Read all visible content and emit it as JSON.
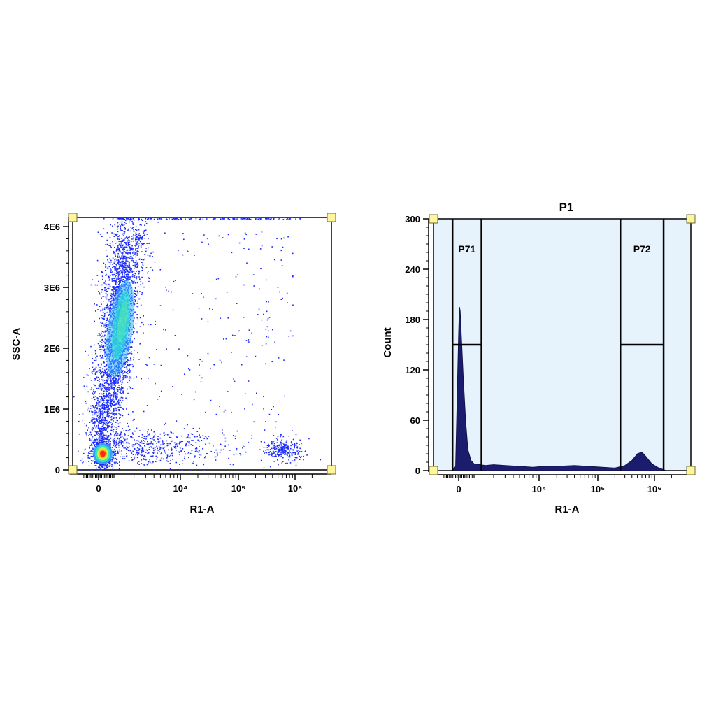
{
  "chart_data": [
    {
      "type": "scatter",
      "title": "",
      "xlabel": "R1-A",
      "ylabel": "SSC-A",
      "x_tick_labels": [
        "0",
        "10⁴",
        "10⁵",
        "10⁶"
      ],
      "y_tick_labels": [
        "0",
        "1E6",
        "2E6",
        "3E6",
        "4E6"
      ],
      "x_scale": "biexponential",
      "ylim": [
        0,
        4150000
      ],
      "density_coloring": true,
      "grid": false,
      "populations": [
        {
          "name": "",
          "x_center": 200,
          "y_center": 280000,
          "density": "highest"
        },
        {
          "name": "",
          "x_center": 1800,
          "y_center": 2400000,
          "density": "high"
        },
        {
          "name": "",
          "x_center": 700000,
          "y_center": 350000,
          "density": "low"
        }
      ]
    },
    {
      "type": "area",
      "title": "P1",
      "xlabel": "R1-A",
      "ylabel": "Count",
      "x_tick_labels": [
        "0",
        "10⁴",
        "10⁵",
        "10⁶"
      ],
      "y_tick_labels": [
        "0",
        "60",
        "120",
        "180",
        "240",
        "300"
      ],
      "x_scale": "biexponential",
      "ylim": [
        0,
        300
      ],
      "grid": false,
      "series": [
        {
          "x": [
            -400,
            -200,
            0,
            50,
            100,
            200,
            300,
            450,
            600,
            800,
            1000,
            1500,
            2000,
            3000,
            5000,
            8000,
            12000,
            20000,
            40000,
            70000,
            120000,
            200000,
            300000,
            400000,
            500000,
            600000,
            700000,
            900000,
            1200000,
            1600000
          ],
          "values": [
            0,
            5,
            165,
            195,
            190,
            150,
            110,
            60,
            25,
            12,
            8,
            6,
            7,
            6,
            5,
            4,
            5,
            5,
            6,
            5,
            4,
            3,
            6,
            12,
            20,
            22,
            17,
            8,
            3,
            0
          ]
        }
      ],
      "gates": [
        {
          "label": "P71",
          "x_range": [
            -400,
            1300
          ],
          "bar_y": 150
        },
        {
          "label": "P72",
          "x_range": [
            250000,
            1450000
          ],
          "bar_y": 150
        }
      ],
      "colors": {
        "fill": "#1c1c6e",
        "gate_region": "#e6f2fc"
      }
    }
  ]
}
